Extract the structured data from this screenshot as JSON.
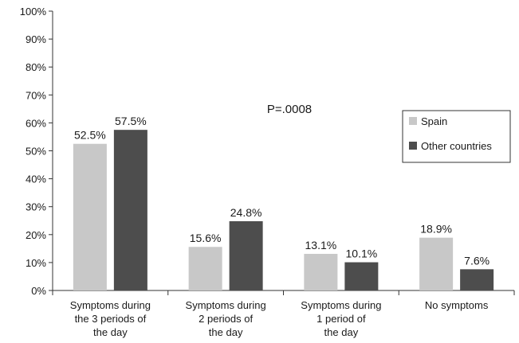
{
  "chart_data": {
    "type": "bar",
    "categories": [
      [
        "Symptoms during",
        "the 3 periods of",
        "the day"
      ],
      [
        "Symptoms during",
        "2 periods of",
        "the day"
      ],
      [
        "Symptoms during",
        "1 period of",
        "the day"
      ],
      [
        "No symptoms"
      ]
    ],
    "series": [
      {
        "name": "Spain",
        "color": "#c8c8c8",
        "values": [
          52.5,
          15.6,
          13.1,
          18.9
        ],
        "labels": [
          "52.5%",
          "15.6%",
          "13.1%",
          "18.9%"
        ]
      },
      {
        "name": "Other countries",
        "color": "#4d4d4d",
        "values": [
          57.5,
          24.8,
          10.1,
          7.6
        ],
        "labels": [
          "57.5%",
          "24.8%",
          "10.1%",
          "7.6%"
        ]
      }
    ],
    "ylim": [
      0,
      100
    ],
    "yticks": [
      "0%",
      "10%",
      "20%",
      "30%",
      "40%",
      "50%",
      "60%",
      "70%",
      "80%",
      "90%",
      "100%"
    ],
    "annotation": "P=.0008",
    "legend_position": "right",
    "grid": false,
    "title": "",
    "xlabel": "",
    "ylabel": ""
  }
}
